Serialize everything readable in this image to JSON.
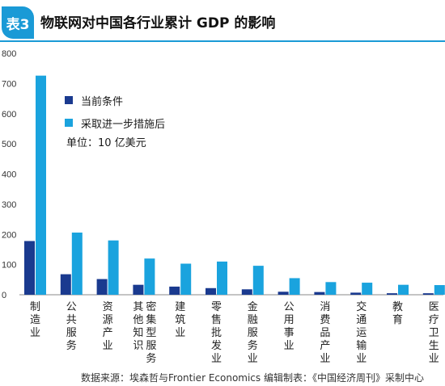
{
  "header": {
    "badge": "表3",
    "title": "物联网对中国各行业累计 GDP 的影响"
  },
  "legend": {
    "items": [
      {
        "label": "当前条件",
        "color": "#1a3a8f"
      },
      {
        "label": "采取进一步措施后",
        "color": "#1aa3de"
      }
    ],
    "unit": "单位：10 亿美元"
  },
  "source": "数据来源：埃森哲与Frontier Economics  编辑制表：《中国经济周刊》采制中心",
  "chart_data": {
    "type": "bar",
    "categories": [
      "制造业",
      "公共服务",
      "资源产业",
      "其他知识密集型服务",
      "建筑业",
      "零售/批发业",
      "金融服务业",
      "公用事业",
      "消费品产业",
      "交通运输业",
      "教育",
      "医疗卫生业"
    ],
    "tick_lines": [
      [
        "制",
        "造",
        "业"
      ],
      [
        "公",
        "共",
        "服",
        "务"
      ],
      [
        "资",
        "源",
        "产",
        "业"
      ],
      [
        "其",
        "他",
        "知",
        "识"
      ],
      [
        "建",
        "筑",
        "业"
      ],
      [
        "零",
        "售",
        "批",
        "发",
        "业"
      ],
      [
        "金",
        "融",
        "服",
        "务",
        "业"
      ],
      [
        "公",
        "用",
        "事",
        "业"
      ],
      [
        "消",
        "费",
        "品",
        "产",
        "业"
      ],
      [
        "交",
        "通",
        "运",
        "输",
        "业"
      ],
      [
        "教",
        "育"
      ],
      [
        "医",
        "疗",
        "卫",
        "生",
        "业"
      ]
    ],
    "tick_lines_extra": {
      "3": [
        "密",
        "集",
        "型",
        "服",
        "务"
      ]
    },
    "series": [
      {
        "name": "当前条件",
        "color": "#1a3a8f",
        "values": [
          178,
          68,
          52,
          33,
          27,
          22,
          18,
          10,
          9,
          7,
          5,
          5
        ]
      },
      {
        "name": "采取进一步措施后",
        "color": "#1aa3de",
        "values": [
          726,
          206,
          180,
          120,
          103,
          110,
          96,
          55,
          42,
          40,
          33,
          32
        ]
      }
    ],
    "yticks": [
      0,
      100,
      200,
      300,
      400,
      500,
      600,
      700,
      800
    ],
    "ylim": [
      0,
      800
    ],
    "grid": "none",
    "legend_position": "top-left"
  }
}
